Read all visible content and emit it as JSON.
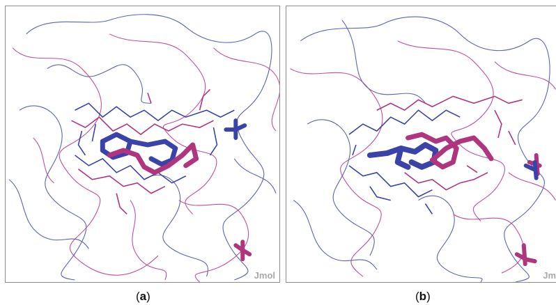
{
  "panels": [
    {
      "id": "a",
      "caption_open": "(",
      "caption_letter": "a",
      "caption_close": ")",
      "watermark": "Jmol"
    },
    {
      "id": "b",
      "caption_open": "(",
      "caption_letter": "b",
      "caption_close": ")",
      "watermark": "Jmo"
    }
  ],
  "colors": {
    "blue_structure": "#3a44a8",
    "magenta_structure": "#b0357f",
    "thin_blue": "#5c63b8",
    "thin_magenta": "#c0509a",
    "frame": "#8c8c8c",
    "watermark": "#a9a9a9"
  },
  "icon_names": [
    "protein-backbone-trace",
    "ligand-stick-model",
    "residue-wireframe"
  ]
}
